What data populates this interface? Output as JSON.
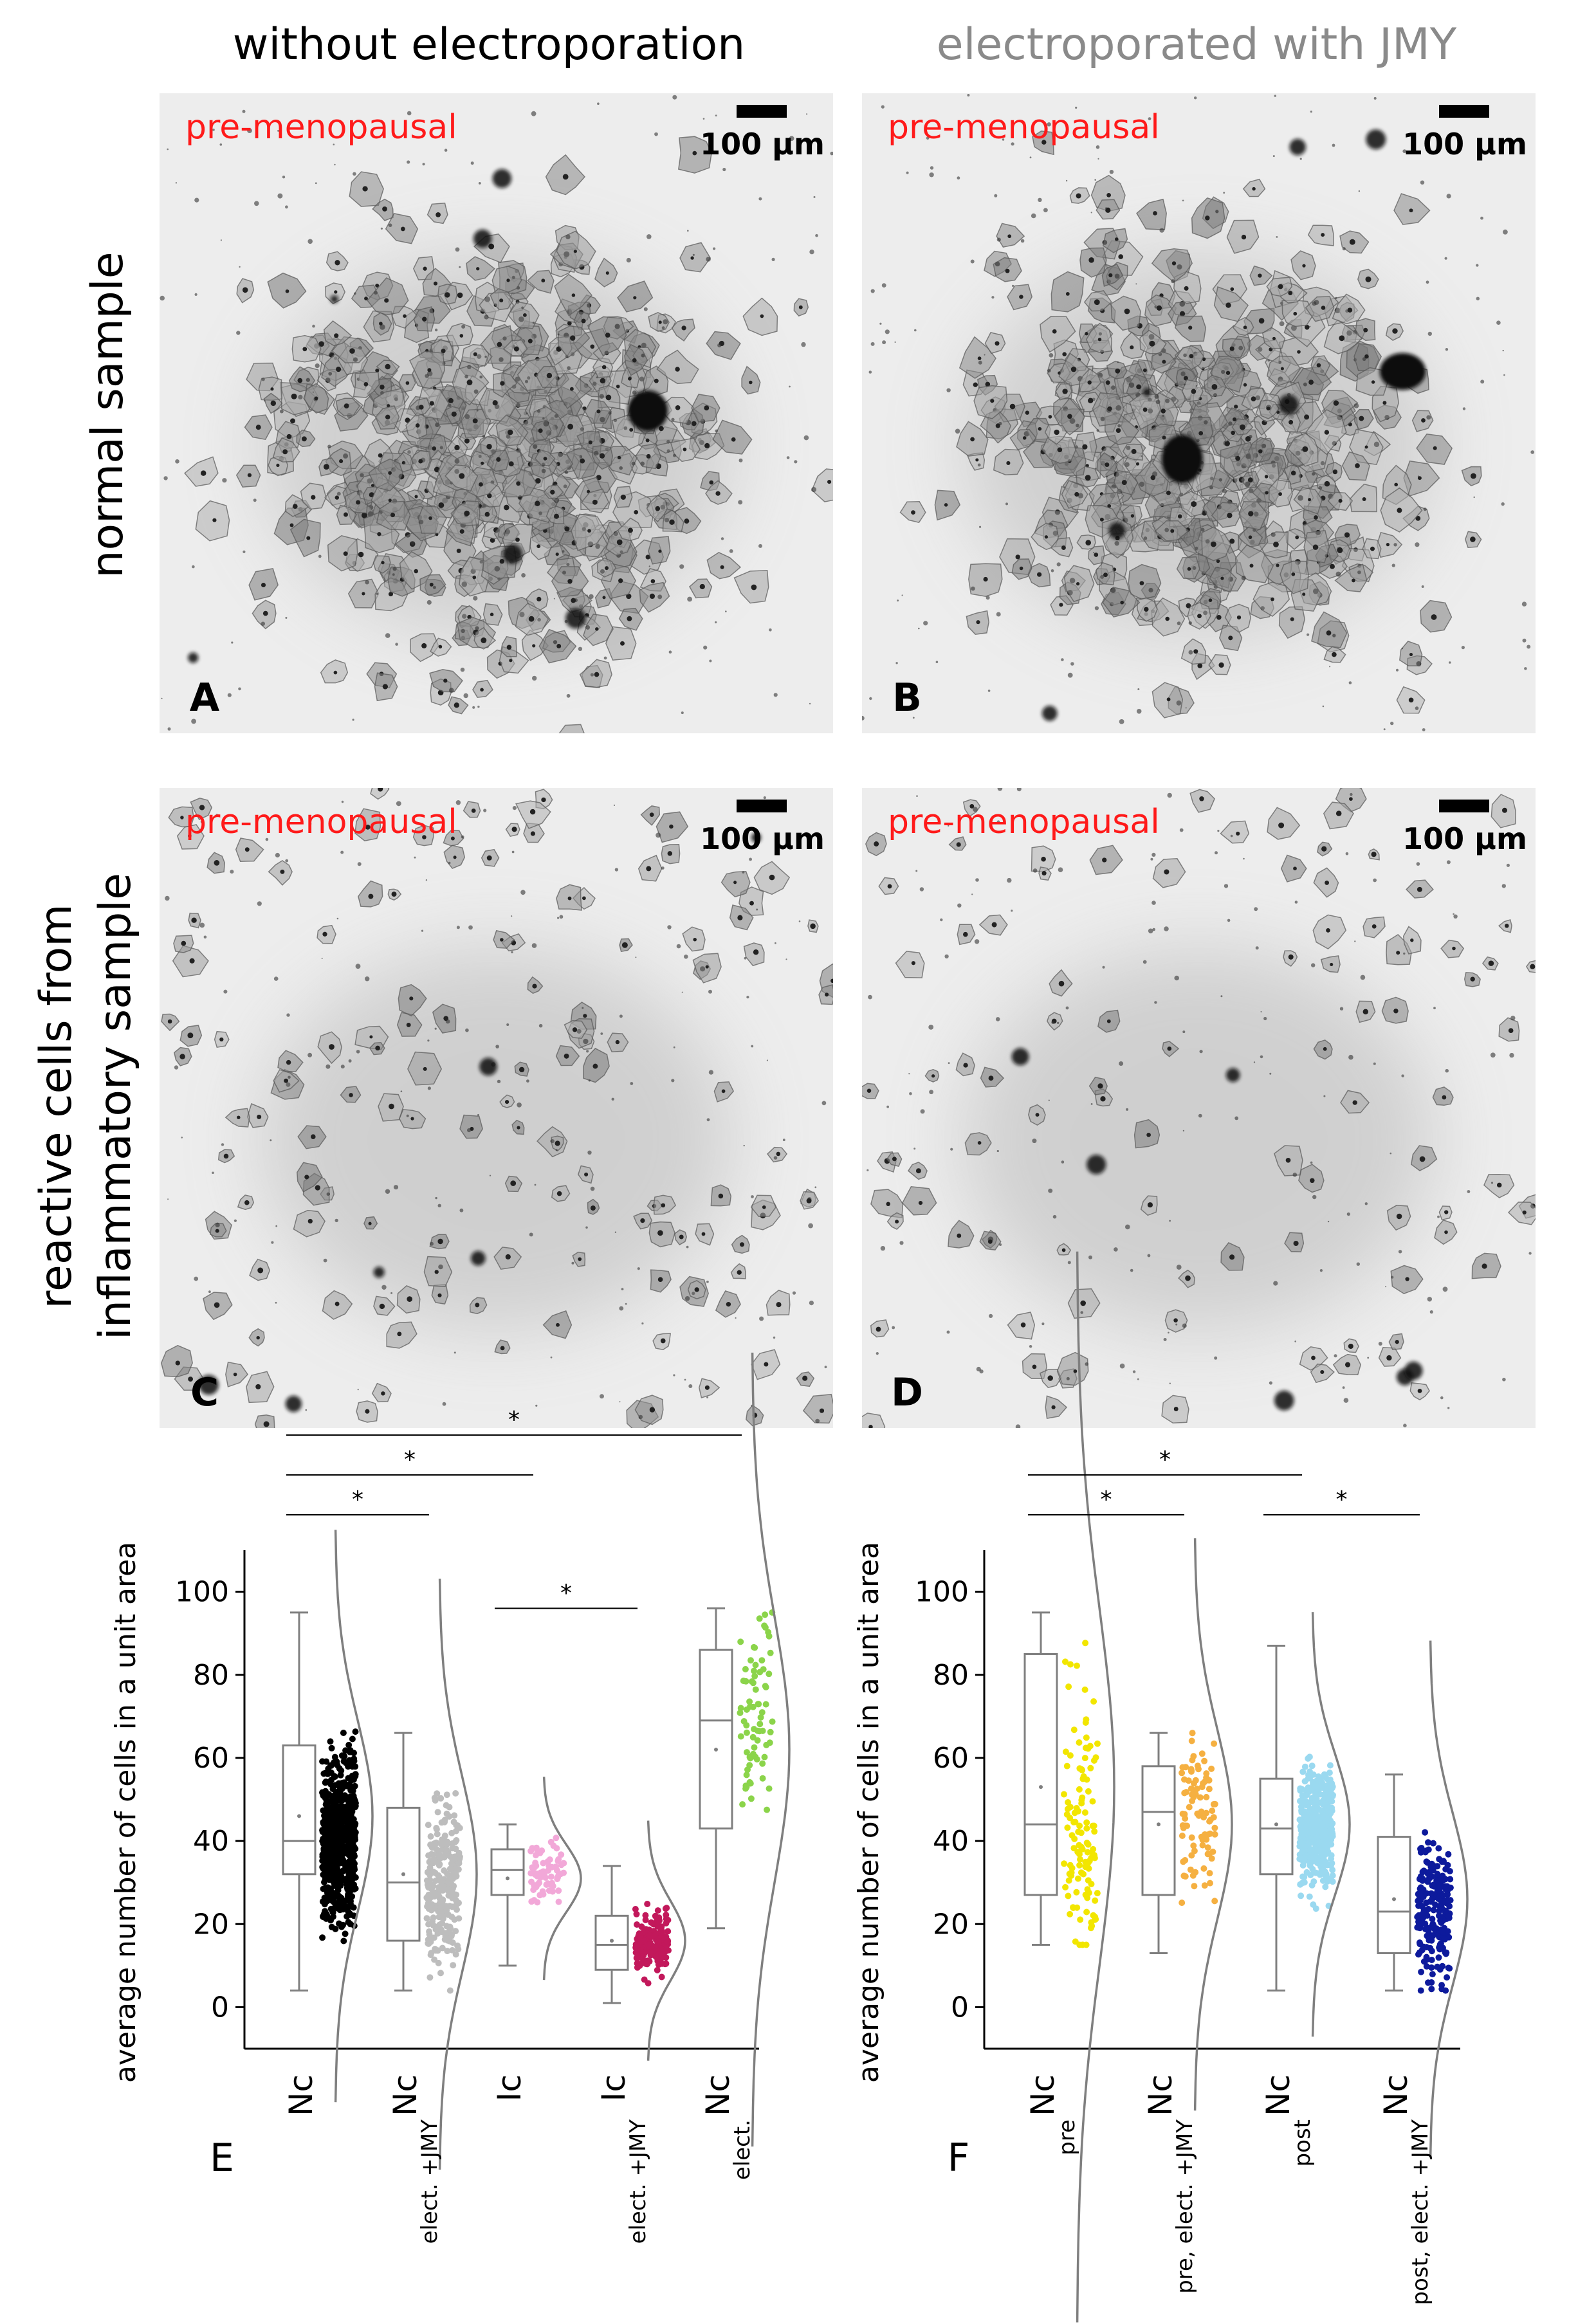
{
  "column_headers": [
    "without electroporation",
    "electroporated with JMY"
  ],
  "row_headers": [
    [
      "normal sample"
    ],
    [
      "reactive cells from",
      "inflammatory sample"
    ]
  ],
  "micrographs": [
    {
      "letter": "A",
      "tag": "pre-menopausal",
      "scale": "100 µm",
      "cells": 520,
      "seed": 11,
      "bigBlobs": 1
    },
    {
      "letter": "B",
      "tag": "pre-menopausal",
      "scale": "100 µm",
      "cells": 470,
      "seed": 23,
      "bigBlobs": 2
    },
    {
      "letter": "C",
      "tag": "pre-menopausal",
      "scale": "100 µm",
      "cells": 140,
      "seed": 37,
      "bigBlobs": 0
    },
    {
      "letter": "D",
      "tag": "pre-menopausal",
      "scale": "100 µm",
      "cells": 95,
      "seed": 51,
      "bigBlobs": 0
    }
  ],
  "colors": {
    "tag": "#ff1a1a",
    "header_left": "#000000",
    "header_right": "#8a8a8a",
    "box": "#7f7f7f",
    "curve": "#7f7f7f"
  },
  "chart_data": [
    {
      "type": "box-scatter",
      "panel": "E",
      "ylabel": "average number of cells in a unit area",
      "ylim": [
        -10,
        110
      ],
      "yticks": [
        0,
        20,
        40,
        60,
        80,
        100
      ],
      "groups": [
        {
          "main": "Nc",
          "sub": "",
          "color": "#000000",
          "min": 4,
          "q1": 32,
          "median": 40,
          "q3": 63,
          "max": 95,
          "mean": 46,
          "n": 700
        },
        {
          "main": "Nc",
          "sub": "elect. +JMY",
          "color": "#bdbdbd",
          "min": 4,
          "q1": 16,
          "median": 30,
          "q3": 48,
          "max": 66,
          "mean": 32,
          "n": 260
        },
        {
          "main": "Ic",
          "sub": "",
          "color": "#f2a8d8",
          "min": 10,
          "q1": 27,
          "median": 33,
          "q3": 38,
          "max": 44,
          "mean": 31,
          "n": 70
        },
        {
          "main": "Ic",
          "sub": "elect. +JMY",
          "color": "#c2185b",
          "min": 1,
          "q1": 9,
          "median": 15,
          "q3": 22,
          "max": 34,
          "mean": 16,
          "n": 150
        },
        {
          "main": "Nc",
          "sub": "elect.",
          "color": "#8bd44a",
          "min": 19,
          "q1": 43,
          "median": 69,
          "q3": 86,
          "max": 96,
          "mean": 62,
          "n": 75
        }
      ],
      "significance": [
        {
          "from": 0,
          "to": 1,
          "label": "*"
        },
        {
          "from": 0,
          "to": 2,
          "label": "*"
        },
        {
          "from": 0,
          "to": 4,
          "label": "*"
        },
        {
          "from": 2,
          "to": 3,
          "label": "*"
        }
      ]
    },
    {
      "type": "box-scatter",
      "panel": "F",
      "ylabel": "average number of cells in a unit area",
      "ylim": [
        -10,
        110
      ],
      "yticks": [
        0,
        20,
        40,
        60,
        80,
        100
      ],
      "groups": [
        {
          "main": "Nc",
          "sub": "pre",
          "color": "#f2e600",
          "min": 15,
          "q1": 27,
          "median": 44,
          "q3": 85,
          "max": 95,
          "mean": 53,
          "n": 120
        },
        {
          "main": "Nc",
          "sub": "pre, elect. +JMY",
          "color": "#f5b041",
          "min": 13,
          "q1": 27,
          "median": 47,
          "q3": 58,
          "max": 66,
          "mean": 44,
          "n": 90
        },
        {
          "main": "Nc",
          "sub": "post",
          "color": "#9ad9f0",
          "min": 4,
          "q1": 32,
          "median": 43,
          "q3": 55,
          "max": 87,
          "mean": 44,
          "n": 420
        },
        {
          "main": "Nc",
          "sub": "post, elect. +JMY",
          "color": "#0d1a9c",
          "min": 4,
          "q1": 13,
          "median": 23,
          "q3": 41,
          "max": 56,
          "mean": 26,
          "n": 220
        }
      ],
      "significance": [
        {
          "from": 0,
          "to": 1,
          "label": "*"
        },
        {
          "from": 0,
          "to": 2,
          "label": "*"
        },
        {
          "from": 2,
          "to": 3,
          "label": "*"
        }
      ]
    }
  ]
}
